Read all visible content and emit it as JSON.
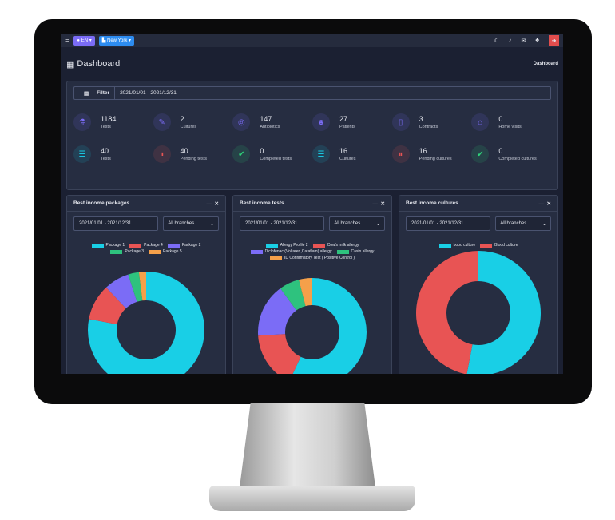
{
  "topbar": {
    "lang": "EN",
    "branch": "New York"
  },
  "header": {
    "title": "Dashboard",
    "breadcrumb": "Dashboard"
  },
  "filter": {
    "label": "Filter",
    "value": "2021/01/01 - 2021/12/31"
  },
  "stats": [
    {
      "value": "1184",
      "label": "Tests",
      "icon": "flask-icon",
      "color": "#7b6cf6"
    },
    {
      "value": "2",
      "label": "Cultures",
      "icon": "test-tube-icon",
      "color": "#7b6cf6"
    },
    {
      "value": "147",
      "label": "Antibiotics",
      "icon": "capsules-icon",
      "color": "#7b6cf6"
    },
    {
      "value": "27",
      "label": "Patients",
      "icon": "user-doctor-icon",
      "color": "#7b6cf6"
    },
    {
      "value": "3",
      "label": "Contracts",
      "icon": "file-icon",
      "color": "#7b6cf6"
    },
    {
      "value": "0",
      "label": "Home visits",
      "icon": "home-icon",
      "color": "#7b6cf6"
    },
    {
      "value": "40",
      "label": "Tests",
      "icon": "list-icon",
      "color": "#19c6e0"
    },
    {
      "value": "40",
      "label": "Pending tests",
      "icon": "pause-icon",
      "color": "#e85454"
    },
    {
      "value": "0",
      "label": "Completed tests",
      "icon": "check-double-icon",
      "color": "#2ed47a"
    },
    {
      "value": "16",
      "label": "Cultures",
      "icon": "list-icon",
      "color": "#19c6e0"
    },
    {
      "value": "16",
      "label": "Pending cultures",
      "icon": "pause-icon",
      "color": "#e85454"
    },
    {
      "value": "0",
      "label": "Completed cultures",
      "icon": "check-double-icon",
      "color": "#2ed47a"
    }
  ],
  "chart_data": [
    {
      "type": "pie",
      "title": "Best income packages",
      "date": "2021/01/01 - 2021/12/31",
      "branch": "All branches",
      "categories": [
        "Package 1",
        "Package 4",
        "Package 2",
        "Package 3",
        "Package 5"
      ],
      "values": [
        78,
        10,
        7,
        3,
        2
      ],
      "colors": [
        "#19cfe6",
        "#e85454",
        "#7b6cf6",
        "#2ec27e",
        "#f5a04a"
      ],
      "donut": true
    },
    {
      "type": "pie",
      "title": "Best income tests",
      "date": "2021/01/01 - 2021/12/31",
      "branch": "All branches",
      "categories": [
        "Allergy Profile 2",
        "Cow's milk allergy",
        "Diclofenac (Voltaren,Cataflam) allergy",
        "Casin allergy",
        "ID Confirmatory Test ( Positive Control )"
      ],
      "values": [
        57,
        17,
        16,
        6,
        4
      ],
      "colors": [
        "#19cfe6",
        "#e85454",
        "#7b6cf6",
        "#2ec27e",
        "#f5a04a"
      ],
      "donut": true
    },
    {
      "type": "pie",
      "title": "Best income cultures",
      "date": "2021/01/01 - 2021/12/31",
      "branch": "All branches",
      "categories": [
        "booo culture",
        "Blood culture"
      ],
      "values": [
        53,
        47
      ],
      "colors": [
        "#19cfe6",
        "#e85454"
      ],
      "donut": true
    }
  ]
}
